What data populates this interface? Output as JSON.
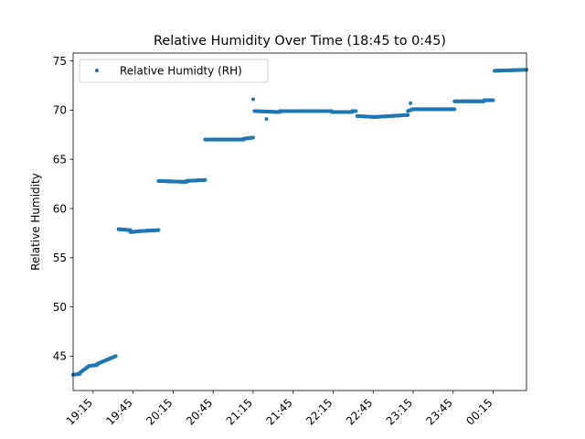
{
  "chart_data": {
    "type": "scatter",
    "title": "Relative Humidity Over Time (18:45 to 0:45)",
    "xlabel": "",
    "ylabel": "Relative Humidity",
    "x_unit": "time (HH:MM)",
    "xlim": [
      "19:00",
      "00:40"
    ],
    "ylim": [
      41.5,
      75.8
    ],
    "x_ticks": [
      "19:15",
      "19:45",
      "20:15",
      "20:45",
      "21:15",
      "21:45",
      "22:15",
      "22:45",
      "23:15",
      "23:45",
      "00:15"
    ],
    "y_ticks": [
      45,
      50,
      55,
      60,
      65,
      70,
      75
    ],
    "grid": false,
    "legend": {
      "position": "top-left",
      "entries": [
        "Relative Humidty (RH)"
      ]
    },
    "series_color": "#1f77b4",
    "series": [
      {
        "name": "Relative Humidty (RH)",
        "segments": [
          {
            "start": "19:00",
            "end": "19:05",
            "y_start": 43.1,
            "y_end": 43.2
          },
          {
            "start": "19:05",
            "end": "19:12",
            "y_start": 43.3,
            "y_end": 44.0
          },
          {
            "start": "19:12",
            "end": "19:18",
            "y_start": 44.0,
            "y_end": 44.1
          },
          {
            "start": "19:18",
            "end": "19:32",
            "y_start": 44.2,
            "y_end": 45.0
          },
          {
            "start": "19:34",
            "end": "19:43",
            "y_start": 57.9,
            "y_end": 57.8
          },
          {
            "start": "19:43",
            "end": "19:50",
            "y_start": 57.6,
            "y_end": 57.7
          },
          {
            "start": "19:50",
            "end": "20:04",
            "y_start": 57.7,
            "y_end": 57.8
          },
          {
            "start": "20:04",
            "end": "20:25",
            "y_start": 62.8,
            "y_end": 62.7
          },
          {
            "start": "20:25",
            "end": "20:39",
            "y_start": 62.8,
            "y_end": 62.9
          },
          {
            "start": "20:39",
            "end": "21:08",
            "y_start": 67.0,
            "y_end": 67.0
          },
          {
            "start": "21:08",
            "end": "21:15",
            "y_start": 67.1,
            "y_end": 67.2
          },
          {
            "start": "21:16",
            "end": "21:35",
            "y_start": 69.9,
            "y_end": 69.8
          },
          {
            "start": "21:35",
            "end": "22:14",
            "y_start": 69.9,
            "y_end": 69.9
          },
          {
            "start": "22:14",
            "end": "22:29",
            "y_start": 69.8,
            "y_end": 69.8
          },
          {
            "start": "22:29",
            "end": "22:32",
            "y_start": 69.9,
            "y_end": 69.9
          },
          {
            "start": "22:33",
            "end": "22:46",
            "y_start": 69.4,
            "y_end": 69.3
          },
          {
            "start": "22:46",
            "end": "23:11",
            "y_start": 69.3,
            "y_end": 69.5
          },
          {
            "start": "23:11",
            "end": "23:15",
            "y_start": 69.9,
            "y_end": 70.1
          },
          {
            "start": "23:15",
            "end": "23:46",
            "y_start": 70.1,
            "y_end": 70.1
          },
          {
            "start": "23:46",
            "end": "00:08",
            "y_start": 70.9,
            "y_end": 70.9
          },
          {
            "start": "00:08",
            "end": "00:15",
            "y_start": 71.0,
            "y_end": 71.0
          },
          {
            "start": "00:16",
            "end": "00:40",
            "y_start": 74.0,
            "y_end": 74.1
          }
        ],
        "outliers": [
          {
            "x": "21:15",
            "y": 71.1
          },
          {
            "x": "21:25",
            "y": 69.1
          },
          {
            "x": "23:13",
            "y": 70.7
          }
        ]
      }
    ]
  }
}
